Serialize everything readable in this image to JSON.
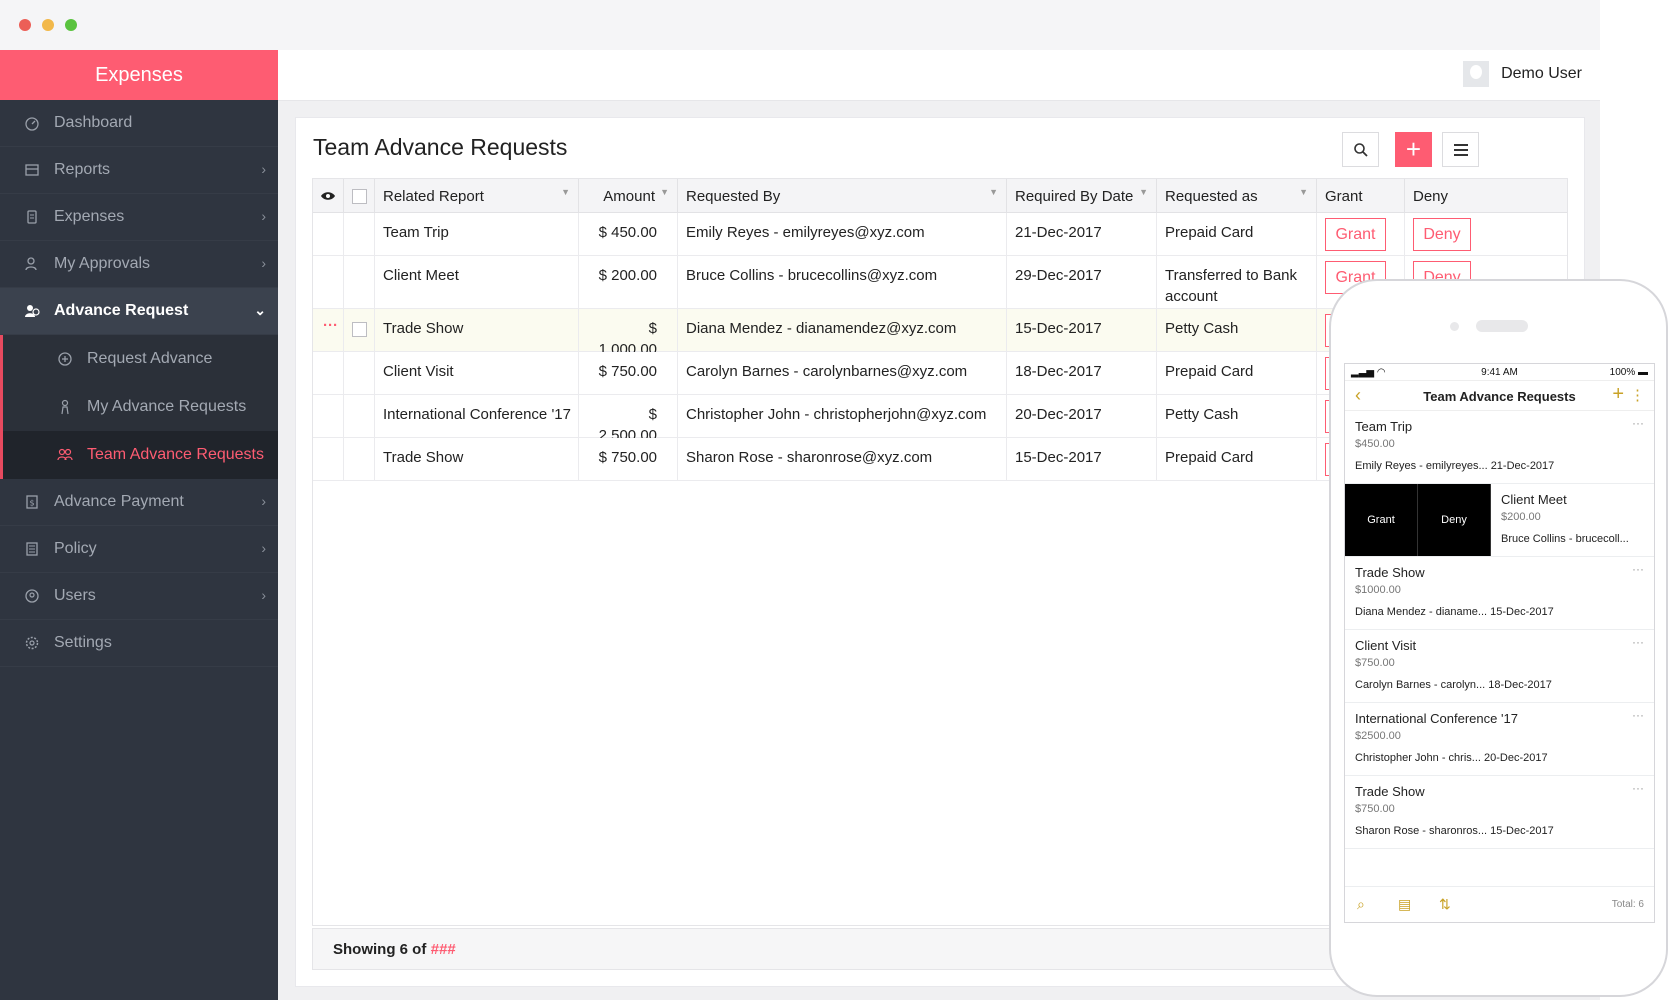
{
  "app": {
    "brand": "Expenses",
    "user_name": "Demo User",
    "accent": "#fe5c72",
    "sidebar_bg": "#2f3540"
  },
  "sidebar": {
    "items": [
      {
        "label": "Dashboard",
        "icon": "dashboard-icon",
        "has_chevron": false
      },
      {
        "label": "Reports",
        "icon": "reports-icon",
        "has_chevron": true
      },
      {
        "label": "Expenses",
        "icon": "expenses-icon",
        "has_chevron": true
      },
      {
        "label": "My Approvals",
        "icon": "approvals-icon",
        "has_chevron": true
      },
      {
        "label": "Advance Request",
        "icon": "advance-request-icon",
        "has_chevron": true,
        "expanded": true
      }
    ],
    "sub_items": [
      {
        "label": "Request Advance",
        "icon": "request-advance-icon"
      },
      {
        "label": "My Advance Requests",
        "icon": "my-requests-icon"
      },
      {
        "label": "Team Advance Requests",
        "icon": "team-requests-icon",
        "current": true
      }
    ],
    "items_after": [
      {
        "label": "Advance Payment",
        "icon": "advance-payment-icon",
        "has_chevron": true
      },
      {
        "label": "Policy",
        "icon": "policy-icon",
        "has_chevron": true
      },
      {
        "label": "Users",
        "icon": "users-icon",
        "has_chevron": true
      },
      {
        "label": "Settings",
        "icon": "settings-icon",
        "has_chevron": false
      }
    ]
  },
  "main": {
    "title": "Team Advance Requests",
    "columns": [
      "Related Report",
      "Amount",
      "Requested By",
      "Required By Date",
      "Requested as",
      "Grant",
      "Deny"
    ],
    "rows": [
      {
        "report": "Team Trip",
        "amount": "$ 450.00",
        "requested_by": "Emily Reyes - emilyreyes@xyz.com",
        "date": "21-Dec-2017",
        "requested_as": "Prepaid Card"
      },
      {
        "report": "Client Meet",
        "amount": "$ 200.00",
        "requested_by": "Bruce Collins - brucecollins@xyz.com",
        "date": "29-Dec-2017",
        "requested_as": "Transferred to Bank account"
      },
      {
        "report": "Trade Show",
        "amount": "$ 1,000.00",
        "requested_by": "Diana Mendez - dianamendez@xyz.com",
        "date": "15-Dec-2017",
        "requested_as": "Petty Cash"
      },
      {
        "report": "Client Visit",
        "amount": "$ 750.00",
        "requested_by": "Carolyn Barnes - carolynbarnes@xyz.com",
        "date": "18-Dec-2017",
        "requested_as": "Prepaid Card"
      },
      {
        "report": "International Conference '17",
        "amount": "$ 2,500.00",
        "requested_by": "Christopher John - christopherjohn@xyz.com",
        "date": "20-Dec-2017",
        "requested_as": "Petty Cash"
      },
      {
        "report": "Trade Show",
        "amount": "$ 750.00",
        "requested_by": "Sharon Rose - sharonrose@xyz.com",
        "date": "15-Dec-2017",
        "requested_as": "Prepaid Card"
      }
    ],
    "grant_label": "Grant",
    "deny_label": "Deny",
    "footer_prefix": "Showing 6 of ",
    "footer_hash": "###"
  },
  "mobile": {
    "time": "9:41 AM",
    "battery": "100%",
    "title": "Team Advance Requests",
    "grant_label": "Grant",
    "deny_label": "Deny",
    "items": [
      {
        "title": "Team Trip",
        "amount": "$450.00",
        "detail": "Emily Reyes - emilyreyes... 21-Dec-2017"
      },
      {
        "title": "Client Meet",
        "amount": "$200.00",
        "detail": "Bruce Collins - brucecoll..."
      },
      {
        "title": "Trade Show",
        "amount": "$1000.00",
        "detail": "Diana Mendez - dianame... 15-Dec-2017"
      },
      {
        "title": "Client Visit",
        "amount": "$750.00",
        "detail": "Carolyn Barnes - carolyn... 18-Dec-2017"
      },
      {
        "title": "International Conference '17",
        "amount": "$2500.00",
        "detail": "Christopher John - chris... 20-Dec-2017"
      },
      {
        "title": "Trade Show",
        "amount": "$750.00",
        "detail": "Sharon Rose - sharonros... 15-Dec-2017"
      }
    ],
    "total": "Total: 6"
  }
}
